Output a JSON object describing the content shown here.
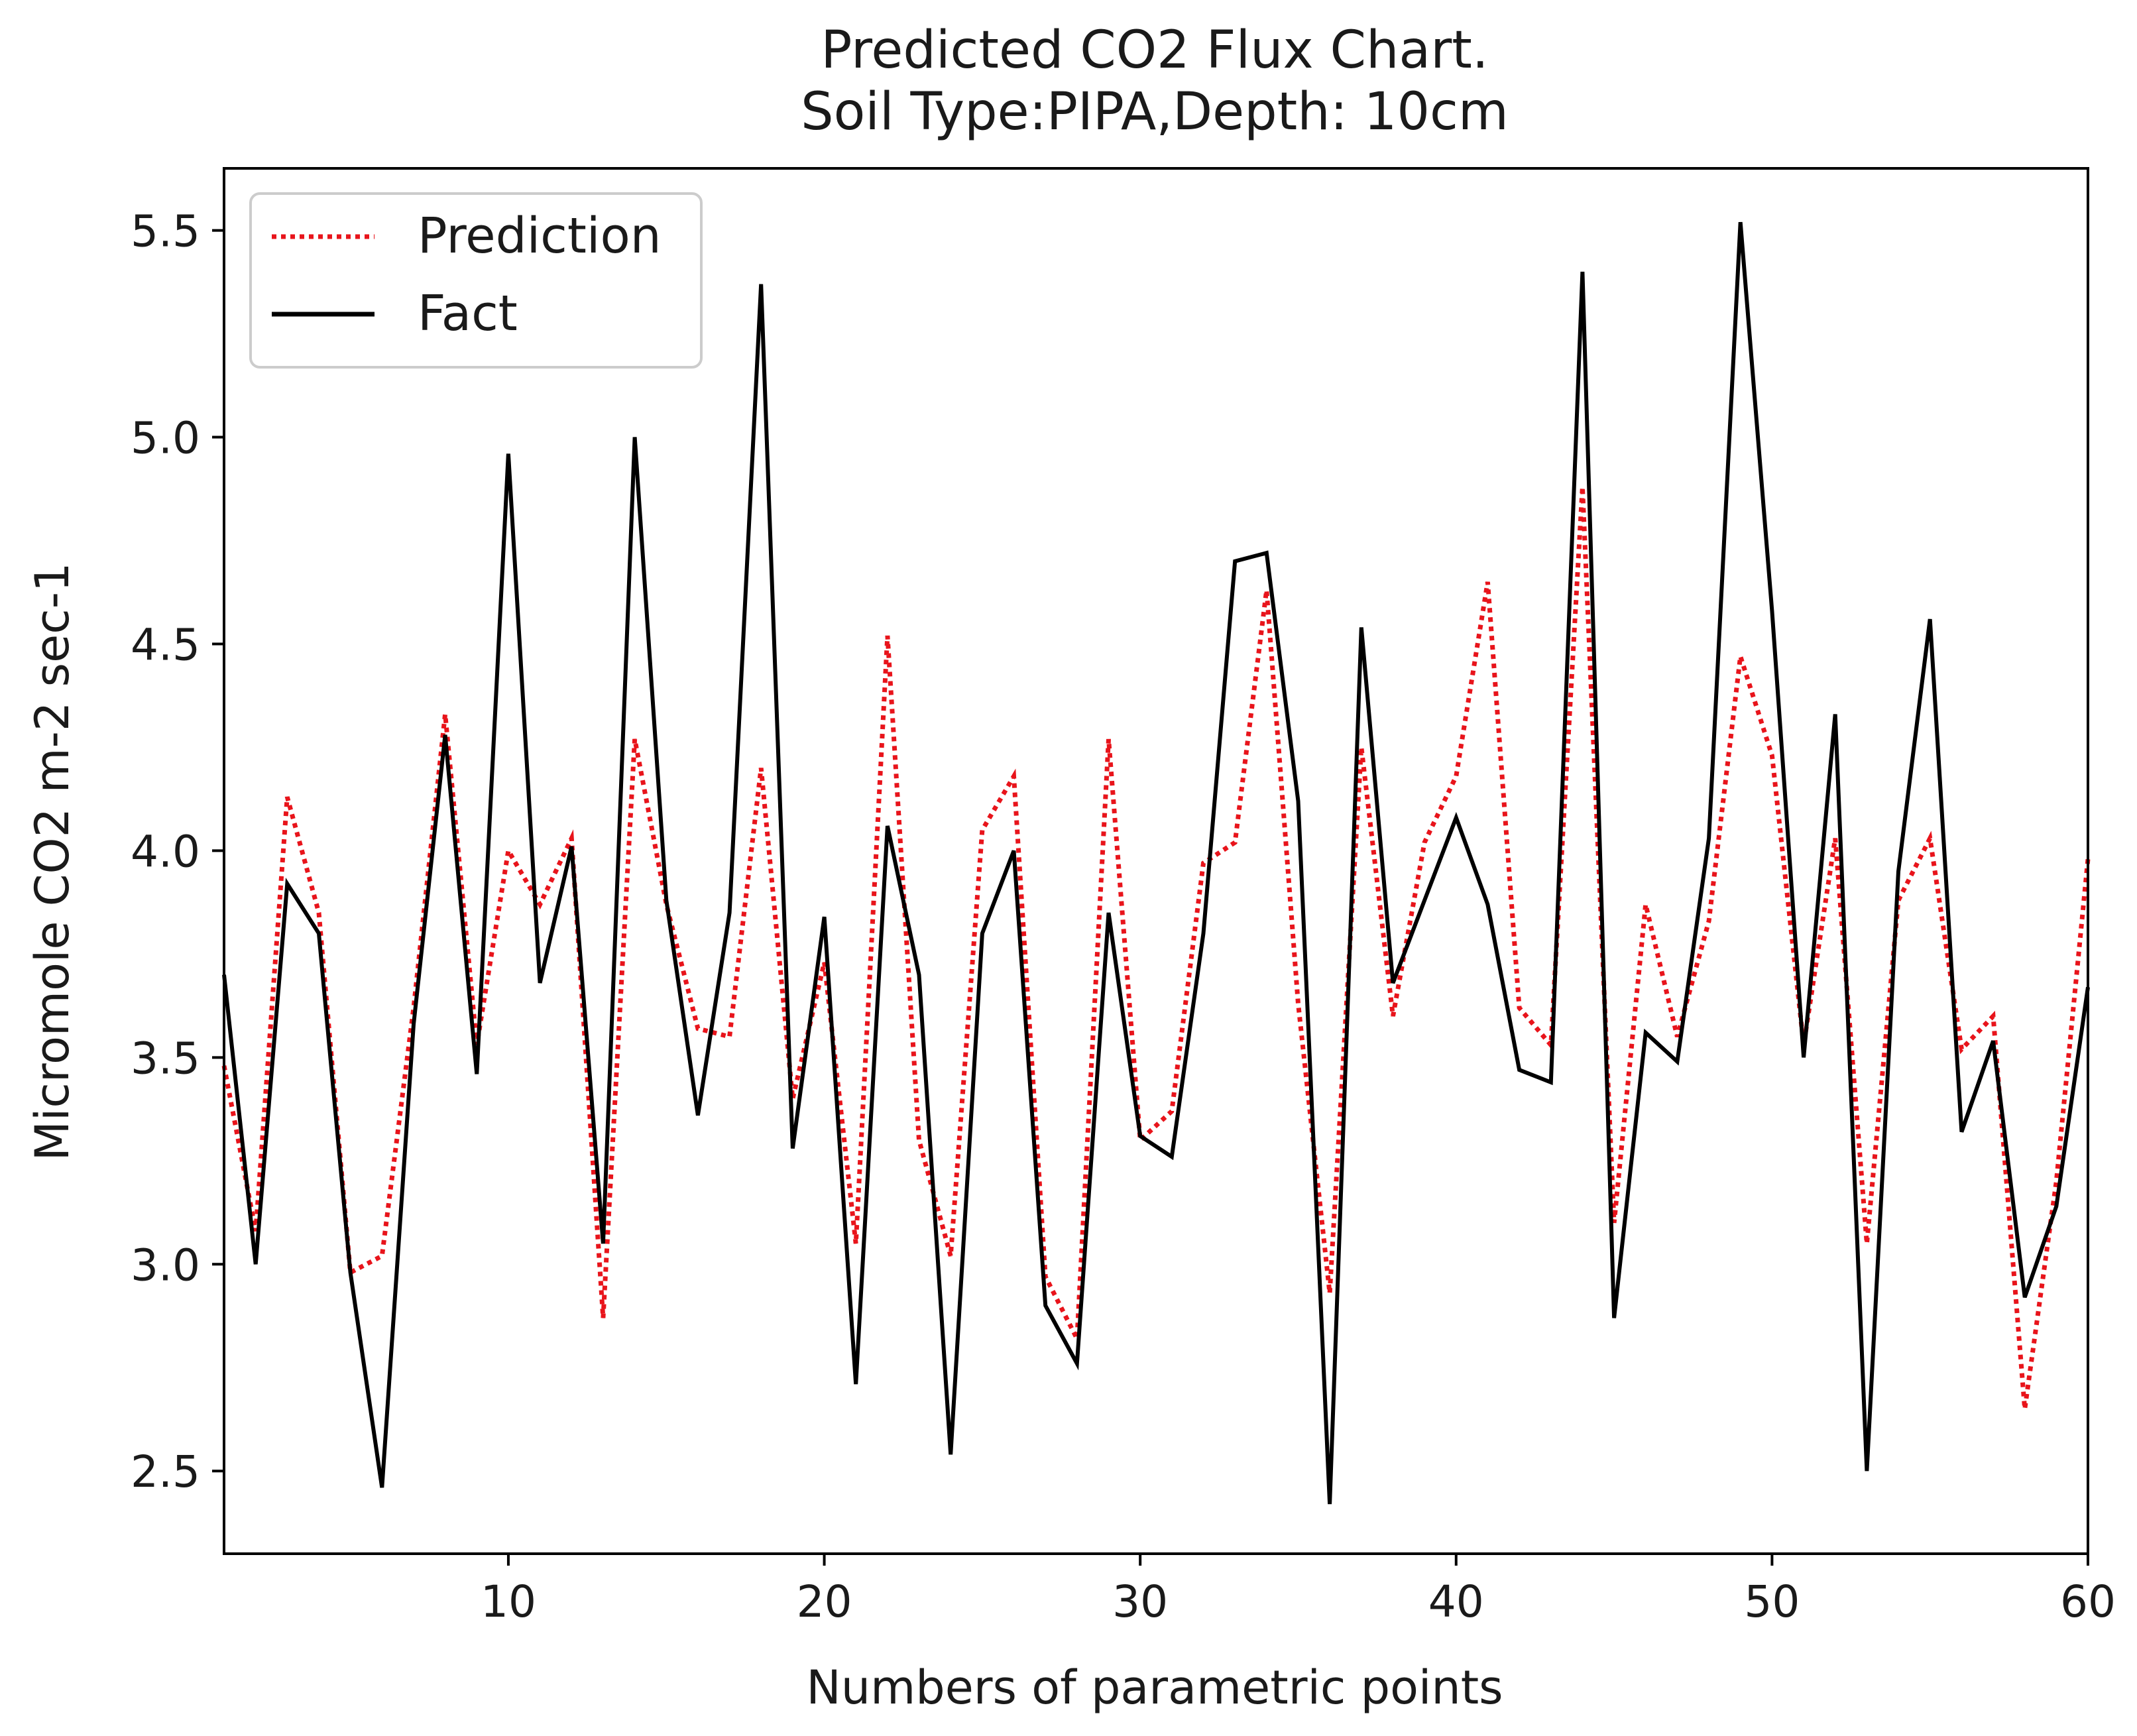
{
  "chart_data": {
    "type": "line",
    "title": "Predicted CO2 Flux Chart.",
    "subtitle": "Soil Type:PIPA,Depth: 10cm",
    "xlabel": "Numbers of parametric points",
    "ylabel": "Micromole CO2 m-2 sec-1",
    "xlim": [
      1,
      60
    ],
    "ylim": [
      2.3,
      5.65
    ],
    "xticks": [
      10,
      20,
      30,
      40,
      50,
      60
    ],
    "xtick_labels": [
      "10",
      "20",
      "30",
      "40",
      "50",
      "60"
    ],
    "yticks": [
      2.5,
      3.0,
      3.5,
      4.0,
      4.5,
      5.0,
      5.5
    ],
    "ytick_labels": [
      "2.5",
      "3.0",
      "3.5",
      "4.0",
      "4.5",
      "5.0",
      "5.5"
    ],
    "grid": false,
    "legend_position": "top-left",
    "x": [
      1,
      2,
      3,
      4,
      5,
      6,
      7,
      8,
      9,
      10,
      11,
      12,
      13,
      14,
      15,
      16,
      17,
      18,
      19,
      20,
      21,
      22,
      23,
      24,
      25,
      26,
      27,
      28,
      29,
      30,
      31,
      32,
      33,
      34,
      35,
      36,
      37,
      38,
      39,
      40,
      41,
      42,
      43,
      44,
      45,
      46,
      47,
      48,
      49,
      50,
      51,
      52,
      53,
      54,
      55,
      56,
      57,
      58,
      59,
      60
    ],
    "series": [
      {
        "name": "Prediction",
        "color": "#e8141b",
        "style": "dotted",
        "values": [
          3.48,
          3.08,
          4.13,
          3.85,
          2.98,
          3.02,
          3.62,
          4.33,
          3.53,
          4.0,
          3.87,
          4.03,
          2.87,
          4.27,
          3.87,
          3.57,
          3.55,
          4.2,
          3.4,
          3.73,
          3.05,
          4.52,
          3.3,
          3.02,
          4.05,
          4.18,
          2.97,
          2.82,
          4.27,
          3.3,
          3.37,
          3.97,
          4.02,
          4.63,
          3.63,
          2.93,
          4.25,
          3.6,
          4.02,
          4.18,
          4.65,
          3.62,
          3.53,
          4.88,
          3.1,
          3.87,
          3.55,
          3.83,
          4.47,
          4.23,
          3.53,
          4.03,
          3.05,
          3.88,
          4.03,
          3.52,
          3.6,
          2.65,
          3.2,
          3.98
        ]
      },
      {
        "name": "Fact",
        "color": "#000000",
        "style": "solid",
        "values": [
          3.7,
          3.0,
          3.92,
          3.8,
          2.98,
          2.46,
          3.58,
          4.28,
          3.46,
          4.96,
          3.68,
          4.01,
          3.05,
          5.0,
          3.88,
          3.36,
          3.85,
          5.37,
          3.28,
          3.84,
          2.71,
          4.06,
          3.7,
          2.54,
          3.8,
          4.0,
          2.9,
          2.76,
          3.85,
          3.31,
          3.26,
          3.8,
          4.7,
          4.72,
          4.12,
          2.42,
          4.54,
          3.68,
          3.88,
          4.08,
          3.87,
          3.47,
          3.44,
          5.4,
          2.87,
          3.56,
          3.49,
          4.03,
          5.52,
          4.58,
          3.5,
          4.33,
          2.5,
          3.95,
          4.56,
          3.32,
          3.54,
          2.92,
          3.14,
          3.67
        ]
      }
    ]
  }
}
